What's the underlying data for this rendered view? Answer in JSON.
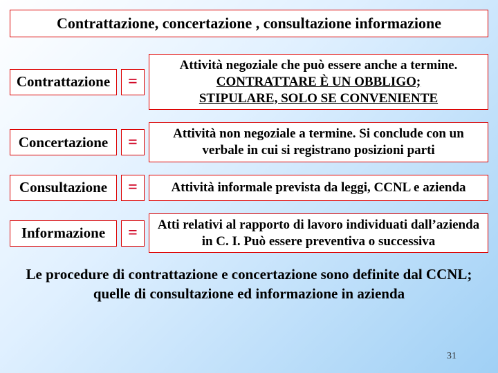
{
  "title": "Contrattazione, concertazione , consultazione informazione",
  "rows": [
    {
      "term": "Contrattazione",
      "eq": "=",
      "def_pre": "Attività negoziale che può essere anche a termine.",
      "def_under1": "CONTRATTARE È UN OBBLIGO;",
      "def_under2": "STIPULARE, SOLO SE CONVENIENTE"
    },
    {
      "term": "Concertazione",
      "eq": "=",
      "def_plain": "Attività non negoziale a termine. Si conclude con un verbale in cui si registrano posizioni parti"
    },
    {
      "term": "Consultazione",
      "eq": "=",
      "def_plain": "Attività informale prevista da leggi, CCNL e azienda"
    },
    {
      "term": "Informazione",
      "eq": "=",
      "def_plain": "Atti relativi al rapporto di lavoro individuati dall’azienda in C. I. Può essere preventiva o successiva"
    }
  ],
  "footer": "Le procedure di contrattazione e concertazione sono definite dal CCNL;   quelle di consultazione ed informazione  in azienda",
  "page_number": "31"
}
